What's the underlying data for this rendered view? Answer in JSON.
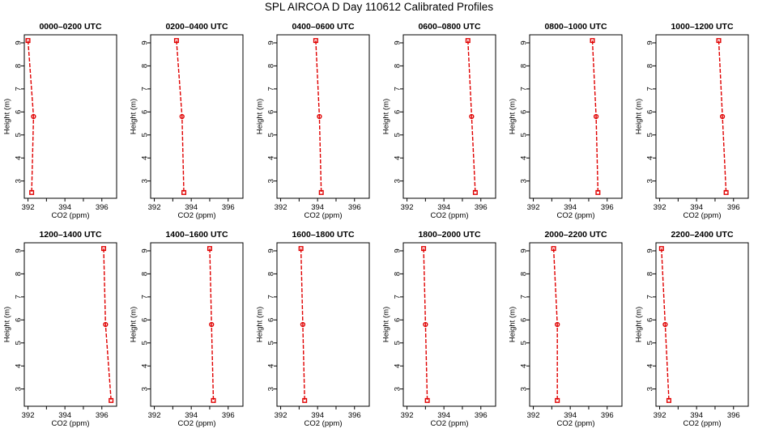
{
  "page": {
    "title": "SPL AIRCOA D  Day 110612  Calibrated Profiles"
  },
  "style": {
    "line_color": "#e00000",
    "marker_color": "#e00000",
    "axis_color": "#000000"
  },
  "axes": {
    "xlabel": "CO2 (ppm)",
    "ylabel": "Height (m)",
    "xlim": [
      391.8,
      396.8
    ],
    "ylim": [
      2.25,
      9.35
    ],
    "xticks": [
      392,
      394,
      396
    ],
    "xticks_minor": [
      393,
      395
    ],
    "yticks": [
      3,
      4,
      5,
      6,
      7,
      8,
      9
    ],
    "x_tick_labels": [
      "392",
      "394",
      "396"
    ],
    "y_tick_labels": [
      "3",
      "4",
      "5",
      "6",
      "7",
      "8",
      "9"
    ]
  },
  "chart_data": [
    {
      "type": "line",
      "title": "0000–0200 UTC",
      "x": [
        392.0,
        392.3,
        392.2
      ],
      "y": [
        9.1,
        5.8,
        2.5
      ]
    },
    {
      "type": "line",
      "title": "0200–0400 UTC",
      "x": [
        393.2,
        393.5,
        393.6
      ],
      "y": [
        9.1,
        5.8,
        2.5
      ]
    },
    {
      "type": "line",
      "title": "0400–0600 UTC",
      "x": [
        393.9,
        394.1,
        394.2
      ],
      "y": [
        9.1,
        5.8,
        2.5
      ]
    },
    {
      "type": "line",
      "title": "0600–0800 UTC",
      "x": [
        395.3,
        395.5,
        395.7
      ],
      "y": [
        9.1,
        5.8,
        2.5
      ]
    },
    {
      "type": "line",
      "title": "0800–1000 UTC",
      "x": [
        395.2,
        395.4,
        395.5
      ],
      "y": [
        9.1,
        5.8,
        2.5
      ]
    },
    {
      "type": "line",
      "title": "1000–1200 UTC",
      "x": [
        395.2,
        395.4,
        395.6
      ],
      "y": [
        9.1,
        5.8,
        2.5
      ]
    },
    {
      "type": "line",
      "title": "1200–1400 UTC",
      "x": [
        396.1,
        396.2,
        396.5
      ],
      "y": [
        9.1,
        5.8,
        2.5
      ]
    },
    {
      "type": "line",
      "title": "1400–1600 UTC",
      "x": [
        395.0,
        395.1,
        395.2
      ],
      "y": [
        9.1,
        5.8,
        2.5
      ]
    },
    {
      "type": "line",
      "title": "1600–1800 UTC",
      "x": [
        393.1,
        393.2,
        393.3
      ],
      "y": [
        9.1,
        5.8,
        2.5
      ]
    },
    {
      "type": "line",
      "title": "1800–2000 UTC",
      "x": [
        392.9,
        393.0,
        393.1
      ],
      "y": [
        9.1,
        5.8,
        2.5
      ]
    },
    {
      "type": "line",
      "title": "2000–2200 UTC",
      "x": [
        393.1,
        393.3,
        393.3
      ],
      "y": [
        9.1,
        5.8,
        2.5
      ]
    },
    {
      "type": "line",
      "title": "2200–2400 UTC",
      "x": [
        392.1,
        392.3,
        392.5
      ],
      "y": [
        9.1,
        5.8,
        2.5
      ]
    }
  ]
}
